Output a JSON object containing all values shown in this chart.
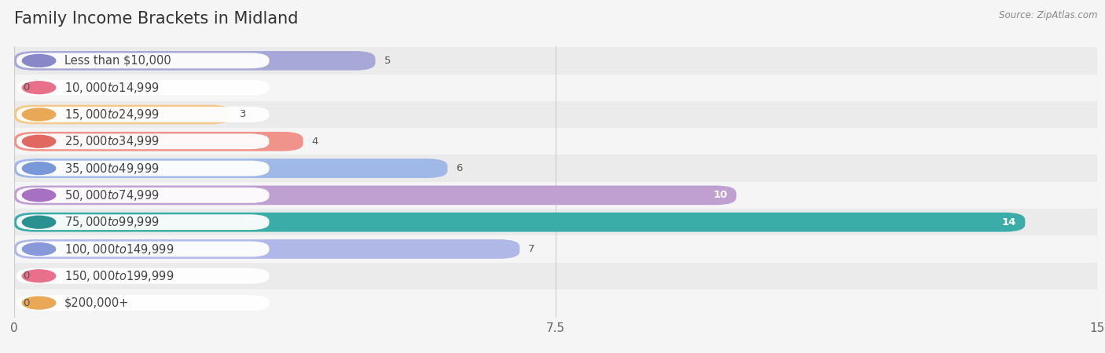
{
  "title": "Family Income Brackets in Midland",
  "source": "Source: ZipAtlas.com",
  "categories": [
    "Less than $10,000",
    "$10,000 to $14,999",
    "$15,000 to $24,999",
    "$25,000 to $34,999",
    "$35,000 to $49,999",
    "$50,000 to $74,999",
    "$75,000 to $99,999",
    "$100,000 to $149,999",
    "$150,000 to $199,999",
    "$200,000+"
  ],
  "values": [
    5,
    0,
    3,
    4,
    6,
    10,
    14,
    7,
    0,
    0
  ],
  "bar_colors": [
    "#a8a8d8",
    "#f4a0b0",
    "#f5c98a",
    "#f0938a",
    "#a0b8e8",
    "#c0a0d0",
    "#3aada8",
    "#b0b8e8",
    "#f4a0b0",
    "#f5c98a"
  ],
  "label_circle_colors": [
    "#8888c8",
    "#e8708a",
    "#e8a855",
    "#e06860",
    "#7898d8",
    "#a870c0",
    "#2a9090",
    "#8898d8",
    "#e8708a",
    "#e8a855"
  ],
  "row_colors": [
    "#ebebeb",
    "#f5f5f5",
    "#ebebeb",
    "#f5f5f5",
    "#ebebeb",
    "#f5f5f5",
    "#ebebeb",
    "#f5f5f5",
    "#ebebeb",
    "#f5f5f5"
  ],
  "xlim": [
    0,
    15
  ],
  "xticks": [
    0,
    7.5,
    15
  ],
  "background_color": "#f5f5f5",
  "title_fontsize": 15,
  "label_fontsize": 10.5
}
